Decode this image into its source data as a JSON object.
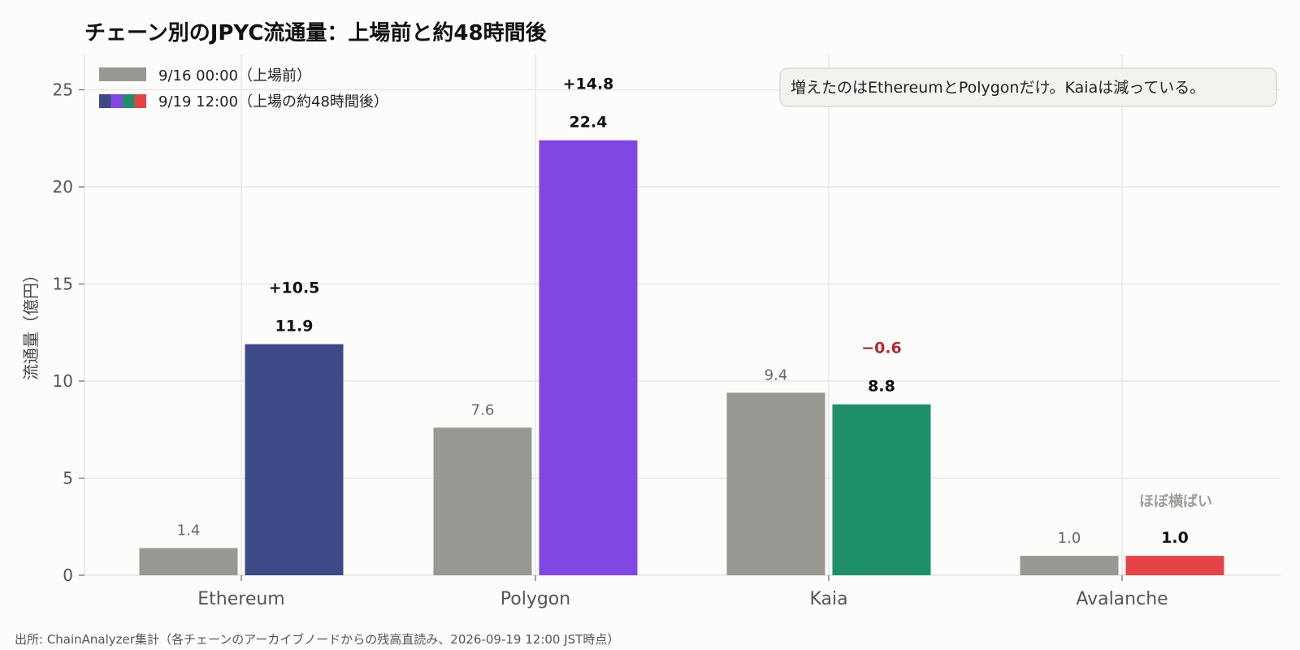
{
  "chart_data": {
    "type": "bar",
    "title": "チェーン別のJPYC流通量：上場前と約48時間後",
    "ylabel": "流通量（億円）",
    "ylim": [
      0,
      27
    ],
    "yticks": [
      0,
      5,
      10,
      15,
      20,
      25
    ],
    "grid": true,
    "legend_position": "top-left",
    "categories": [
      "Ethereum",
      "Polygon",
      "Kaia",
      "Avalanche"
    ],
    "series": [
      {
        "name": "9/16 00:00（上場前）",
        "values": [
          1.4,
          7.6,
          9.4,
          1.0
        ]
      },
      {
        "name": "9/19 12:00（上場の約48時間後）",
        "values": [
          11.9,
          22.4,
          8.8,
          1.0
        ]
      }
    ],
    "before_labels": [
      "1.4",
      "7.6",
      "9.4",
      "1.0"
    ],
    "after_labels": [
      "11.9",
      "22.4",
      "8.8",
      "1.0"
    ],
    "delta_labels": [
      "+10.5",
      "+14.8",
      "−0.6",
      ""
    ],
    "flat_note": "ほぼ横ばい",
    "annotation": "増えたのはEthereumとPolygonだけ。Kaiaは減っている。",
    "source": "出所: ChainAnalyzer集計（各チェーンのアーカイブノードからの残高直読み、2026-09-19 12:00 JST時点）"
  },
  "colors": {
    "before": "#9a9893",
    "after": [
      "#3d4a87",
      "#8147e2",
      "#1f8f6b",
      "#e54446"
    ],
    "delta_positive": "#111111",
    "delta_negative": "#b02a30",
    "grid": "#e3e3e3",
    "note_bg": "#f3f2ef",
    "note_border": "#d9d8d4"
  }
}
